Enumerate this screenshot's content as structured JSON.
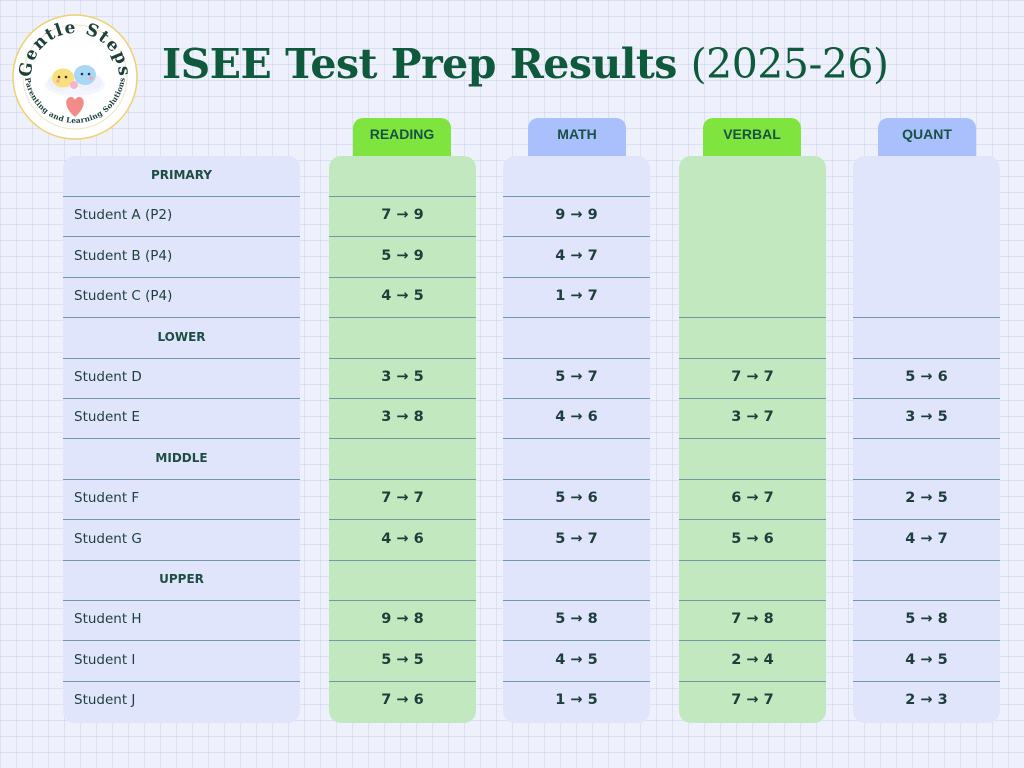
{
  "title": {
    "main": "ISEE Test Prep Results",
    "year": "(2025-26)"
  },
  "logo": {
    "top_text": "Gentle Steps",
    "bottom_text": "Parenting and Learning Solutions"
  },
  "colors": {
    "green_col": "#c2e8c0",
    "blue_col": "#e0e5fc",
    "green_tab": "#7fe43e",
    "blue_tab": "#a9c0fc",
    "title": "#0f5a3c"
  },
  "columns": [
    {
      "label": "READING",
      "color": "green"
    },
    {
      "label": "MATH",
      "color": "blue"
    },
    {
      "label": "VERBAL",
      "color": "green"
    },
    {
      "label": "QUANT",
      "color": "blue"
    }
  ],
  "rows": [
    {
      "type": "section",
      "label": "PRIMARY"
    },
    {
      "type": "student",
      "label": "Student A (P2)",
      "scores": [
        "7 → 9",
        "9 → 9",
        "",
        ""
      ]
    },
    {
      "type": "student",
      "label": "Student B (P4)",
      "scores": [
        "5 → 9",
        "4 → 7",
        "",
        ""
      ]
    },
    {
      "type": "student",
      "label": "Student C (P4)",
      "scores": [
        "4 → 5",
        "1 → 7",
        "",
        ""
      ]
    },
    {
      "type": "section",
      "label": "LOWER"
    },
    {
      "type": "student",
      "label": "Student D",
      "scores": [
        "3 → 5",
        "5 → 7",
        "7 → 7",
        "5 → 6"
      ]
    },
    {
      "type": "student",
      "label": "Student E",
      "scores": [
        "3 → 8",
        "4 → 6",
        "3 → 7",
        "3 → 5"
      ]
    },
    {
      "type": "section",
      "label": "MIDDLE"
    },
    {
      "type": "student",
      "label": "Student F",
      "scores": [
        "7 → 7",
        "5 → 6",
        "6 → 7",
        "2 → 5"
      ]
    },
    {
      "type": "student",
      "label": "Student G",
      "scores": [
        "4 → 6",
        "5 → 7",
        "5 → 6",
        "4 → 7"
      ]
    },
    {
      "type": "section",
      "label": "UPPER"
    },
    {
      "type": "student",
      "label": "Student H",
      "scores": [
        "9 → 8",
        "5 → 8",
        "7 → 8",
        "5 → 8"
      ]
    },
    {
      "type": "student",
      "label": "Student I",
      "scores": [
        "5 → 5",
        "4 → 5",
        "2 → 4",
        "4 → 5"
      ]
    },
    {
      "type": "student",
      "label": "Student J",
      "scores": [
        "7 → 6",
        "1 → 5",
        "7 → 7",
        "2 → 3"
      ]
    }
  ]
}
